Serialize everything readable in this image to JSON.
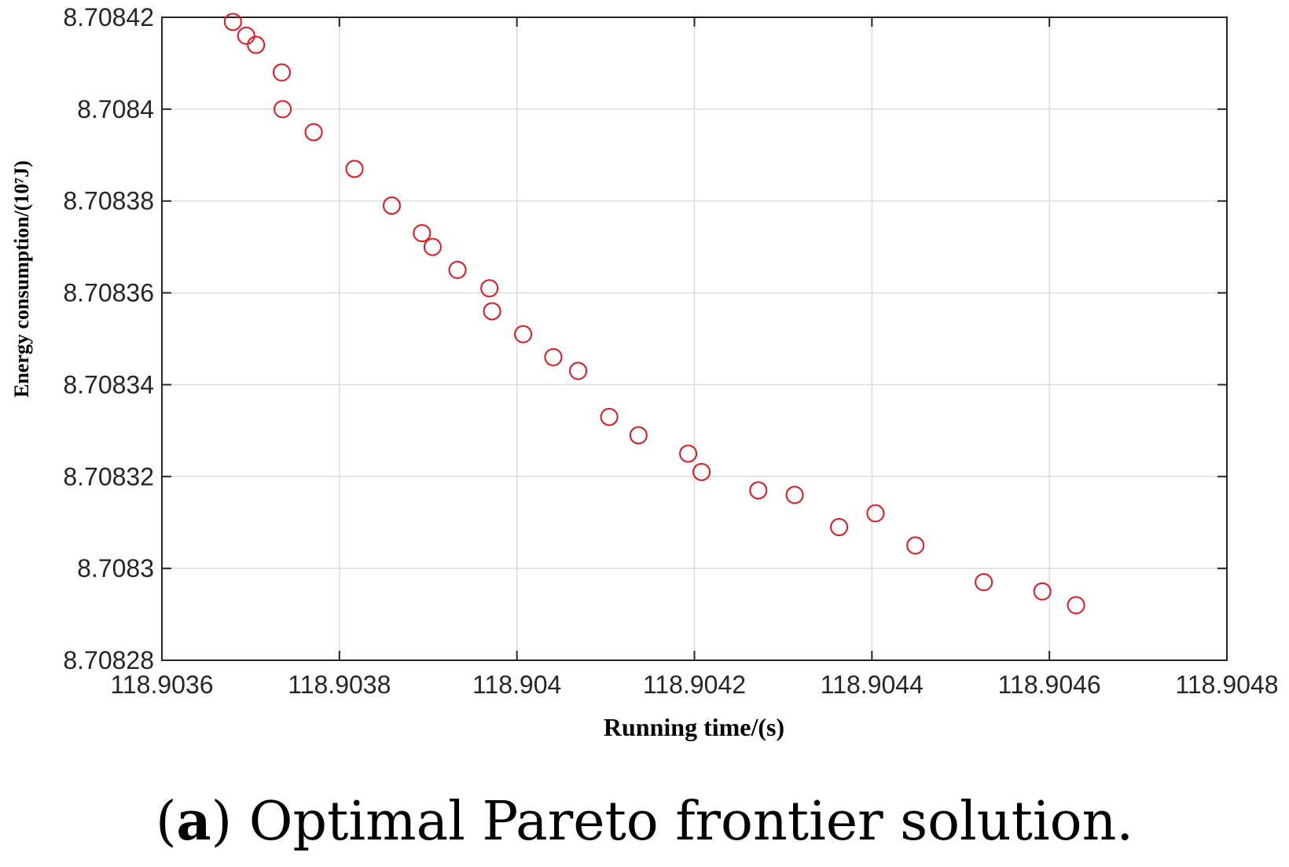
{
  "chart_data": {
    "type": "scatter",
    "title": "",
    "xlabel": "Running time/(s)",
    "ylabel": "Energy consumption/(10⁷J)",
    "xlim": [
      118.9036,
      118.9048
    ],
    "ylim": [
      8.70828,
      8.70842
    ],
    "xticks": [
      118.9036,
      118.9038,
      118.904,
      118.9042,
      118.9044,
      118.9046,
      118.9048
    ],
    "xtick_labels": [
      "118.9036",
      "118.9038",
      "118.904",
      "118.9042",
      "118.9044",
      "118.9046",
      "118.9048"
    ],
    "yticks": [
      8.70828,
      8.7083,
      8.70832,
      8.70834,
      8.70836,
      8.70838,
      8.7084,
      8.70842
    ],
    "ytick_labels": [
      "8.70828",
      "8.7083",
      "8.70832",
      "8.70834",
      "8.70836",
      "8.70838",
      "8.7084",
      "8.70842"
    ],
    "grid": true,
    "marker": "open-circle",
    "marker_color": "#e8121c",
    "points": [
      [
        118.90368,
        8.708419
      ],
      [
        118.903695,
        8.708416
      ],
      [
        118.903706,
        8.708414
      ],
      [
        118.903735,
        8.708408
      ],
      [
        118.903736,
        8.7084
      ],
      [
        118.903771,
        8.708395
      ],
      [
        118.903817,
        8.708387
      ],
      [
        118.903859,
        8.708379
      ],
      [
        118.903893,
        8.708373
      ],
      [
        118.903905,
        8.70837
      ],
      [
        118.903933,
        8.708365
      ],
      [
        118.903969,
        8.708361
      ],
      [
        118.903972,
        8.708356
      ],
      [
        118.904007,
        8.708351
      ],
      [
        118.904041,
        8.708346
      ],
      [
        118.904069,
        8.708343
      ],
      [
        118.904104,
        8.708333
      ],
      [
        118.904137,
        8.708329
      ],
      [
        118.904193,
        8.708325
      ],
      [
        118.904208,
        8.708321
      ],
      [
        118.904272,
        8.708317
      ],
      [
        118.904313,
        8.708316
      ],
      [
        118.904363,
        8.708309
      ],
      [
        118.904404,
        8.708312
      ],
      [
        118.904449,
        8.708305
      ],
      [
        118.904526,
        8.708297
      ],
      [
        118.904592,
        8.708295
      ],
      [
        118.90463,
        8.708292
      ]
    ]
  },
  "caption": {
    "open": "(",
    "letter": "a",
    "text": ") Optimal Pareto frontier solution."
  }
}
